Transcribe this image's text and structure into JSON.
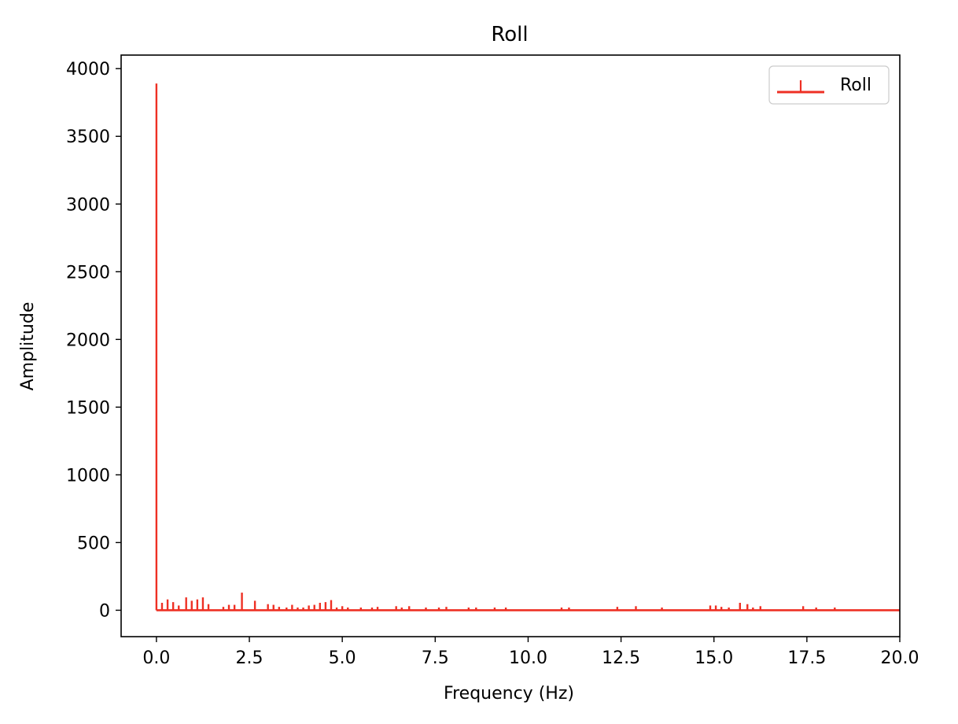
{
  "chart_data": {
    "type": "stem",
    "title": "Roll",
    "xlabel": "Frequency (Hz)",
    "ylabel": "Amplitude",
    "xlim": [
      -0.95,
      20.0
    ],
    "ylim": [
      -195,
      4100
    ],
    "xticks": [
      0.0,
      2.5,
      5.0,
      7.5,
      10.0,
      12.5,
      15.0,
      17.5,
      20.0
    ],
    "xtick_labels": [
      "0.0",
      "2.5",
      "5.0",
      "7.5",
      "10.0",
      "12.5",
      "15.0",
      "17.5",
      "20.0"
    ],
    "yticks": [
      0,
      500,
      1000,
      1500,
      2000,
      2500,
      3000,
      3500,
      4000
    ],
    "ytick_labels": [
      "0",
      "500",
      "1000",
      "1500",
      "2000",
      "2500",
      "3000",
      "3500",
      "4000"
    ],
    "grid": false,
    "legend_position": "upper right",
    "color": "#ee3024",
    "baseline": 0,
    "series": [
      {
        "name": "Roll",
        "x": [
          0.0,
          0.15,
          0.3,
          0.45,
          0.6,
          0.8,
          0.95,
          1.1,
          1.25,
          1.4,
          1.8,
          1.95,
          2.1,
          2.3,
          2.65,
          3.0,
          3.15,
          3.3,
          3.5,
          3.65,
          3.8,
          3.95,
          4.1,
          4.25,
          4.4,
          4.55,
          4.7,
          4.85,
          5.0,
          5.15,
          5.5,
          5.8,
          5.95,
          6.45,
          6.6,
          6.8,
          7.25,
          7.6,
          7.8,
          8.4,
          8.6,
          9.1,
          9.4,
          10.9,
          11.1,
          12.4,
          12.9,
          13.6,
          14.9,
          15.05,
          15.2,
          15.4,
          15.7,
          15.9,
          16.05,
          16.25,
          17.4,
          17.75,
          18.25
        ],
        "values": [
          3890,
          55,
          80,
          60,
          35,
          95,
          70,
          80,
          95,
          45,
          25,
          40,
          40,
          130,
          70,
          45,
          40,
          25,
          20,
          40,
          20,
          20,
          35,
          40,
          55,
          60,
          75,
          20,
          30,
          20,
          20,
          20,
          25,
          30,
          20,
          30,
          20,
          20,
          25,
          20,
          20,
          20,
          20,
          20,
          20,
          25,
          30,
          20,
          35,
          35,
          25,
          20,
          55,
          45,
          20,
          30,
          30,
          20,
          20
        ]
      }
    ]
  }
}
